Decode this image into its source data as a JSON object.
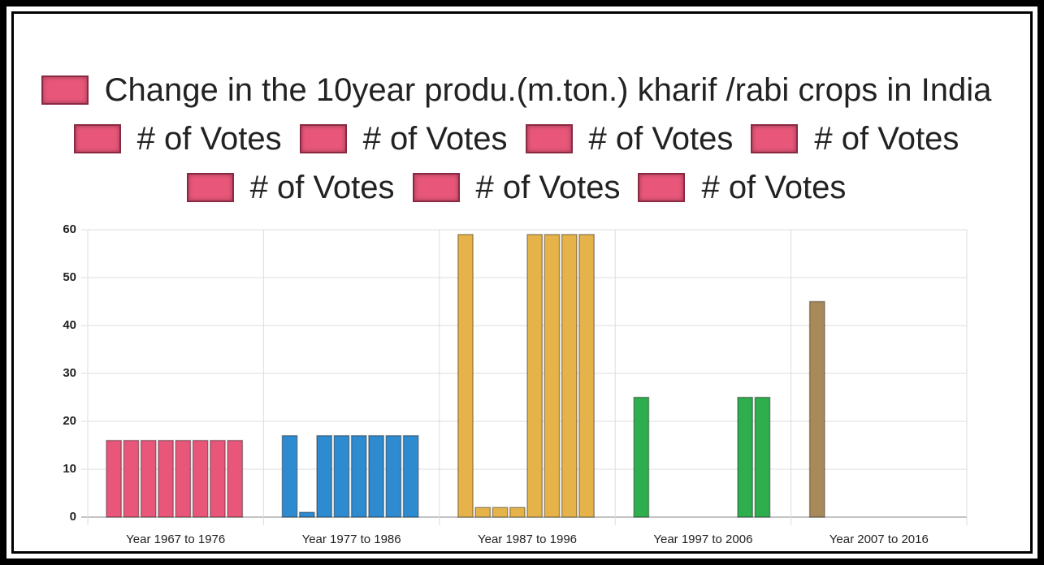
{
  "chart_data": {
    "type": "bar",
    "categories": [
      "Year 1967 to 1976",
      "Year 1977 to 1986",
      "Year 1987 to 1996",
      "Year 1997 to 2006",
      "Year 2007 to 2016"
    ],
    "bar_colors": [
      "#e8577a",
      "#2f8bd0",
      "#e6b34a",
      "#2fae4e",
      "#a88a5a"
    ],
    "series": [
      {
        "name": "Change in the 10year produ.(m.ton.) kharif /rabi crops in India",
        "color": "#e8577a",
        "values": [
          16,
          17,
          59,
          25,
          45
        ]
      },
      {
        "name": "# of Votes",
        "color": "#e8577a",
        "values": [
          16,
          1,
          2,
          0,
          0
        ]
      },
      {
        "name": "# of Votes",
        "color": "#e8577a",
        "values": [
          16,
          17,
          2,
          0,
          0
        ]
      },
      {
        "name": "# of Votes",
        "color": "#e8577a",
        "values": [
          16,
          17,
          2,
          0,
          0
        ]
      },
      {
        "name": "# of Votes",
        "color": "#e8577a",
        "values": [
          16,
          17,
          59,
          0,
          0
        ]
      },
      {
        "name": "# of Votes",
        "color": "#e8577a",
        "values": [
          16,
          17,
          59,
          0,
          0
        ]
      },
      {
        "name": "# of Votes",
        "color": "#e8577a",
        "values": [
          16,
          17,
          59,
          25,
          0
        ]
      },
      {
        "name": "# of Votes",
        "color": "#e8577a",
        "values": [
          16,
          17,
          59,
          25,
          0
        ]
      }
    ],
    "ylim": [
      0,
      60
    ],
    "yticks": [
      0,
      10,
      20,
      30,
      40,
      50,
      60
    ],
    "grid": true,
    "legend": "top"
  }
}
